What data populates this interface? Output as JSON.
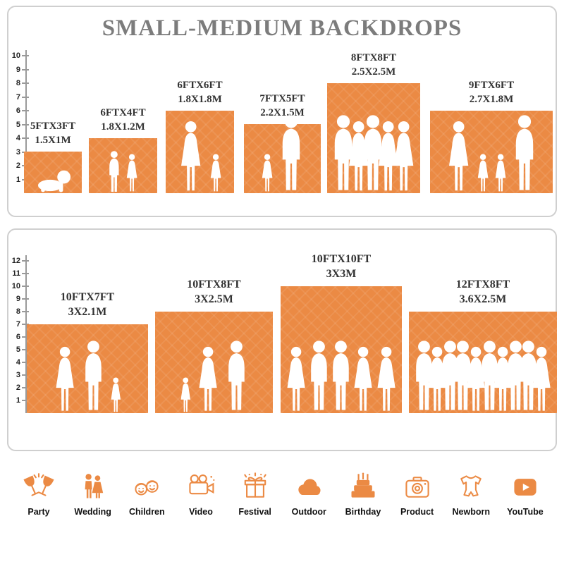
{
  "title": "SMALL-MEDIUM BACKDROPS",
  "accent_color": "#EB8A44",
  "title_color": "#7C7C7C",
  "panel_top": {
    "ruler": [
      "10",
      "9",
      "8",
      "7",
      "6",
      "5",
      "4",
      "3",
      "2",
      "1"
    ],
    "bars": [
      {
        "ft": "5FTX3FT",
        "m": "1.5X1M",
        "width_ft": 5,
        "height_ft": 3,
        "people": [
          "baby"
        ]
      },
      {
        "ft": "6FTX4FT",
        "m": "1.8X1.2M",
        "width_ft": 6,
        "height_ft": 4,
        "people": [
          "boy",
          "girl"
        ]
      },
      {
        "ft": "6FTX6FT",
        "m": "1.8X1.8M",
        "width_ft": 6,
        "height_ft": 6,
        "people": [
          "woman",
          "girl"
        ]
      },
      {
        "ft": "7FTX5FT",
        "m": "2.2X1.5M",
        "width_ft": 7,
        "height_ft": 5,
        "people": [
          "girl",
          "man"
        ]
      },
      {
        "ft": "8FTX8FT",
        "m": "2.5X2.5M",
        "width_ft": 8,
        "height_ft": 8,
        "people": [
          "man",
          "woman",
          "man",
          "woman",
          "woman"
        ]
      },
      {
        "ft": "9FTX6FT",
        "m": "2.7X1.8M",
        "width_ft": 9,
        "height_ft": 6,
        "people": [
          "woman",
          "girl",
          "girl",
          "man"
        ]
      }
    ]
  },
  "panel_bottom": {
    "ruler": [
      "12",
      "11",
      "10",
      "9",
      "8",
      "7",
      "6",
      "5",
      "4",
      "3",
      "2",
      "1"
    ],
    "bars": [
      {
        "ft": "10FTX7FT",
        "m": "3X2.1M",
        "width_ft": 10,
        "height_ft": 7,
        "people": [
          "woman",
          "man",
          "girl"
        ]
      },
      {
        "ft": "10FTX8FT",
        "m": "3X2.5M",
        "width_ft": 10,
        "height_ft": 8,
        "people": [
          "girl",
          "woman",
          "man"
        ]
      },
      {
        "ft": "10FTX10FT",
        "m": "3X3M",
        "width_ft": 10,
        "height_ft": 10,
        "people": [
          "woman",
          "man",
          "man",
          "woman",
          "woman"
        ]
      },
      {
        "ft": "12FTX8FT",
        "m": "3.6X2.5M",
        "width_ft": 12,
        "height_ft": 8,
        "people": [
          "man",
          "woman",
          "man",
          "man",
          "woman",
          "man",
          "woman",
          "man",
          "man",
          "woman"
        ]
      }
    ]
  },
  "footer": {
    "categories": [
      {
        "icon": "party-icon",
        "label": "Party"
      },
      {
        "icon": "wedding-icon",
        "label": "Wedding"
      },
      {
        "icon": "children-icon",
        "label": "Children"
      },
      {
        "icon": "video-icon",
        "label": "Video"
      },
      {
        "icon": "festival-icon",
        "label": "Festival"
      },
      {
        "icon": "outdoor-icon",
        "label": "Outdoor"
      },
      {
        "icon": "birthday-icon",
        "label": "Birthday"
      },
      {
        "icon": "product-icon",
        "label": "Product"
      },
      {
        "icon": "newborn-icon",
        "label": "Newborn"
      },
      {
        "icon": "youtube-icon",
        "label": "YouTube"
      }
    ]
  }
}
